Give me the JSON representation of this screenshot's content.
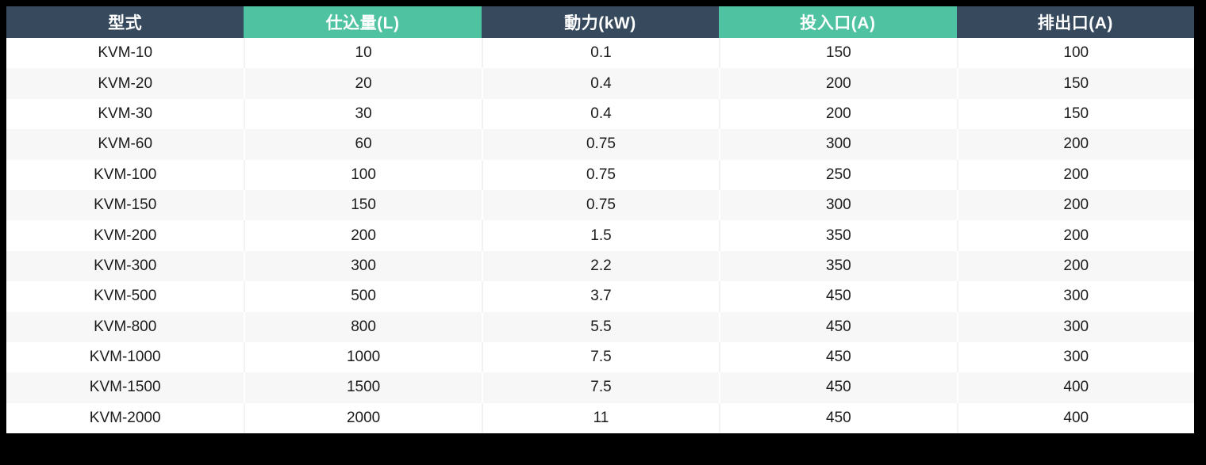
{
  "colors": {
    "header_dark": "#36495D",
    "header_teal": "#4FC3A1",
    "row_white": "#FFFFFF",
    "row_alt_gray": "#F7F7F7",
    "canvas_background": "#000000",
    "header_text": "#FFFFFF",
    "body_text": "#1B1B1B"
  },
  "chart_data": {
    "type": "table",
    "title": "",
    "columns": [
      "型式",
      "仕込量(L)",
      "動力(kW)",
      "投入口(A)",
      "排出口(A)"
    ],
    "header_styles": [
      "dark",
      "teal",
      "dark",
      "teal",
      "dark"
    ],
    "rows": [
      [
        "KVM-10",
        "10",
        "0.1",
        "150",
        "100"
      ],
      [
        "KVM-20",
        "20",
        "0.4",
        "200",
        "150"
      ],
      [
        "KVM-30",
        "30",
        "0.4",
        "200",
        "150"
      ],
      [
        "KVM-60",
        "60",
        "0.75",
        "300",
        "200"
      ],
      [
        "KVM-100",
        "100",
        "0.75",
        "250",
        "200"
      ],
      [
        "KVM-150",
        "150",
        "0.75",
        "300",
        "200"
      ],
      [
        "KVM-200",
        "200",
        "1.5",
        "350",
        "200"
      ],
      [
        "KVM-300",
        "300",
        "2.2",
        "350",
        "200"
      ],
      [
        "KVM-500",
        "500",
        "3.7",
        "450",
        "300"
      ],
      [
        "KVM-800",
        "800",
        "5.5",
        "450",
        "300"
      ],
      [
        "KVM-1000",
        "1000",
        "7.5",
        "450",
        "300"
      ],
      [
        "KVM-1500",
        "1500",
        "7.5",
        "450",
        "400"
      ],
      [
        "KVM-2000",
        "2000",
        "11",
        "450",
        "400"
      ]
    ]
  }
}
